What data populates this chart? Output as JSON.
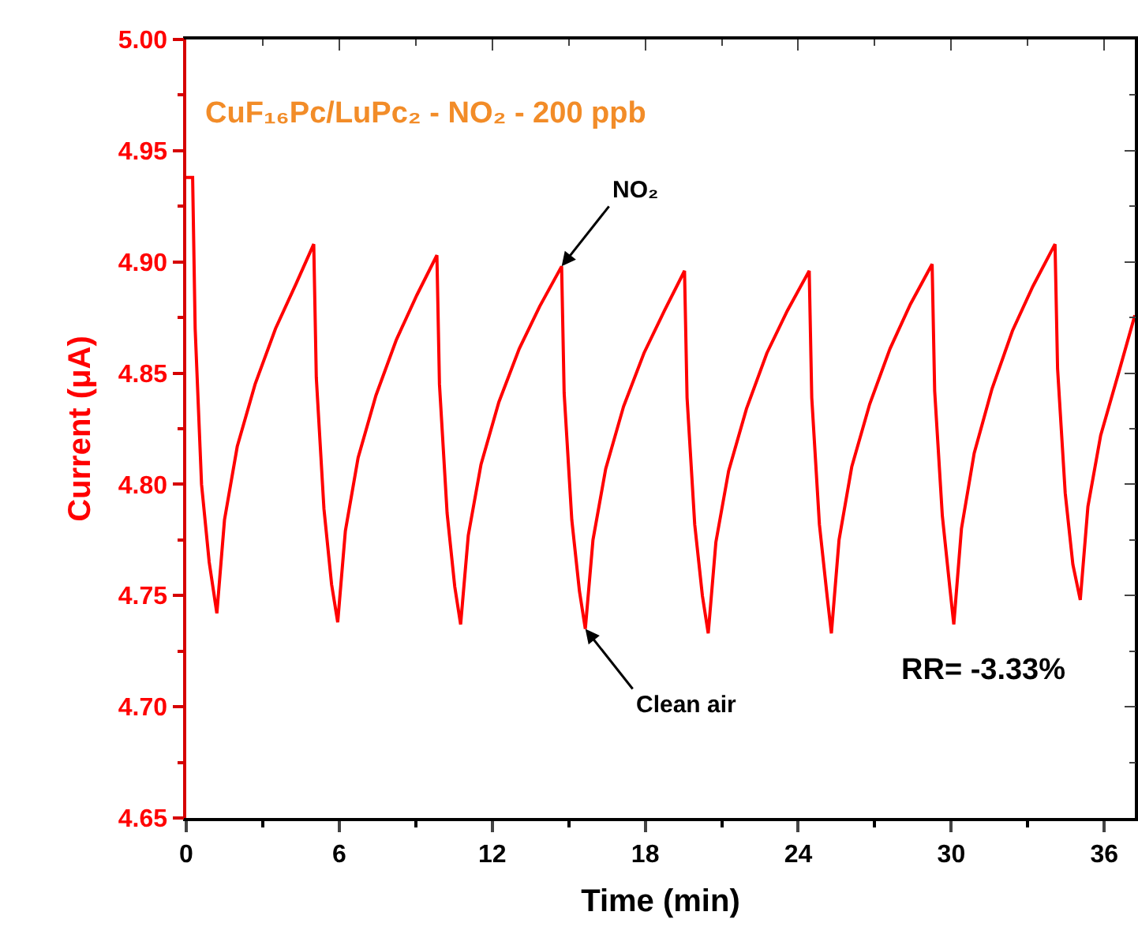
{
  "chart_data": {
    "type": "line",
    "title": "CuF₁₆Pc/LuPc₂ - NO₂ - 200 ppb",
    "xlabel": "Time (min)",
    "ylabel": "Current (μA)",
    "x": [
      0,
      0.25,
      0.35,
      0.6,
      0.9,
      1.2,
      1.5,
      2.0,
      2.7,
      3.5,
      4.3,
      5.0,
      5.1,
      5.4,
      5.7,
      5.94,
      6.24,
      6.74,
      7.44,
      8.24,
      9.04,
      9.83,
      9.93,
      10.23,
      10.53,
      10.76,
      11.06,
      11.56,
      12.26,
      13.06,
      13.86,
      14.72,
      14.82,
      15.12,
      15.42,
      15.65,
      15.95,
      16.45,
      17.15,
      17.95,
      18.75,
      19.54,
      19.64,
      19.94,
      20.24,
      20.47,
      20.77,
      21.27,
      21.97,
      22.77,
      23.57,
      24.43,
      24.53,
      24.83,
      25.13,
      25.3,
      25.6,
      26.1,
      26.8,
      27.6,
      28.4,
      29.25,
      29.35,
      29.65,
      29.95,
      30.1,
      30.4,
      30.9,
      31.6,
      32.4,
      33.2,
      34.07,
      34.17,
      34.47,
      34.77,
      35.06,
      35.36,
      35.86,
      36.56,
      37.2
    ],
    "series": [
      {
        "color": "#ff0000",
        "values": [
          4.938,
          4.938,
          4.87,
          4.8,
          4.765,
          4.742,
          4.784,
          4.817,
          4.845,
          4.87,
          4.89,
          4.908,
          4.848,
          4.789,
          4.755,
          4.738,
          4.779,
          4.812,
          4.84,
          4.865,
          4.885,
          4.903,
          4.845,
          4.787,
          4.754,
          4.737,
          4.777,
          4.809,
          4.837,
          4.861,
          4.88,
          4.898,
          4.841,
          4.784,
          4.752,
          4.735,
          4.775,
          4.807,
          4.835,
          4.859,
          4.878,
          4.896,
          4.839,
          4.782,
          4.75,
          4.733,
          4.774,
          4.806,
          4.834,
          4.859,
          4.878,
          4.896,
          4.839,
          4.782,
          4.75,
          4.733,
          4.775,
          4.808,
          4.836,
          4.861,
          4.881,
          4.899,
          4.842,
          4.786,
          4.753,
          4.737,
          4.78,
          4.814,
          4.843,
          4.869,
          4.889,
          4.908,
          4.852,
          4.796,
          4.764,
          4.748,
          4.79,
          4.822,
          4.85,
          4.876
        ]
      }
    ],
    "xlim": [
      0,
      37.2
    ],
    "xticks": [
      0,
      6,
      12,
      18,
      24,
      30,
      36
    ],
    "ylim": [
      4.65,
      5.0
    ],
    "yticks": [
      {
        "value": 4.65,
        "label": "4.65"
      },
      {
        "value": 4.7,
        "label": "4.70"
      },
      {
        "value": 4.75,
        "label": "4.75"
      },
      {
        "value": 4.8,
        "label": "4.80"
      },
      {
        "value": 4.85,
        "label": "4.85"
      },
      {
        "value": 4.9,
        "label": "4.90"
      },
      {
        "value": 4.95,
        "label": "4.95"
      },
      {
        "value": 5.0,
        "label": "5.00"
      }
    ],
    "annotations": [
      {
        "text": "NO₂",
        "x": 14.72,
        "y": 4.898
      },
      {
        "text": "Clean air",
        "x": 15.65,
        "y": 4.735
      },
      "RR= -3.33%"
    ],
    "grid": false,
    "marker": "none",
    "line_style": "solid"
  }
}
